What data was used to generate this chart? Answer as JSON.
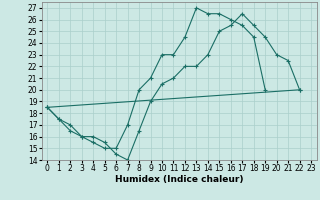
{
  "xlabel": "Humidex (Indice chaleur)",
  "bg_color": "#cce8e4",
  "grid_color": "#aacfcb",
  "line_color": "#1a6e65",
  "xlim": [
    -0.5,
    23.5
  ],
  "ylim": [
    14,
    27.5
  ],
  "yticks": [
    14,
    15,
    16,
    17,
    18,
    19,
    20,
    21,
    22,
    23,
    24,
    25,
    26,
    27
  ],
  "xticks": [
    0,
    1,
    2,
    3,
    4,
    5,
    6,
    7,
    8,
    9,
    10,
    11,
    12,
    13,
    14,
    15,
    16,
    17,
    18,
    19,
    20,
    21,
    22,
    23
  ],
  "line1_x": [
    0,
    1,
    2,
    3,
    4,
    5,
    6,
    7,
    8,
    9,
    10,
    11,
    12,
    13,
    14,
    15,
    16,
    17,
    18,
    19,
    20,
    21,
    22
  ],
  "line1_y": [
    18.5,
    17.5,
    17.0,
    16.0,
    16.0,
    15.5,
    14.5,
    14.0,
    16.5,
    19.0,
    20.5,
    21.0,
    22.0,
    22.0,
    23.0,
    25.0,
    25.5,
    26.5,
    25.5,
    24.5,
    23.0,
    22.5,
    20.0
  ],
  "line2_x": [
    0,
    1,
    2,
    3,
    4,
    5,
    6,
    7,
    8,
    9,
    10,
    11,
    12,
    13,
    14,
    15,
    16,
    17,
    18,
    19
  ],
  "line2_y": [
    18.5,
    17.5,
    16.5,
    16.0,
    15.5,
    15.0,
    15.0,
    17.0,
    20.0,
    21.0,
    23.0,
    23.0,
    24.5,
    27.0,
    26.5,
    26.5,
    26.0,
    25.5,
    24.5,
    20.0
  ],
  "line3_x": [
    0,
    22
  ],
  "line3_y": [
    18.5,
    20.0
  ],
  "marker_size": 2.5,
  "tick_fontsize": 5.5,
  "label_fontsize": 6.5
}
